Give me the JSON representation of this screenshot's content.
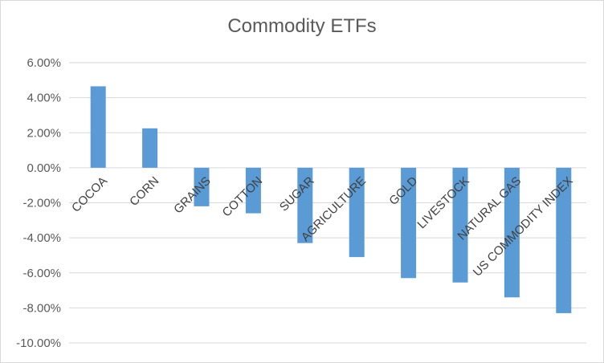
{
  "chart_data": {
    "type": "bar",
    "title": "Commodity ETFs",
    "xlabel": "",
    "ylabel": "",
    "categories": [
      "COCOA",
      "CORN",
      "GRAINS",
      "COTTON",
      "SUGAR",
      "AGRICULTURE",
      "GOLD",
      "LIVESTOCK",
      "NATURAL GAS",
      "US COMMODITY INDEX"
    ],
    "values": [
      4.65,
      2.25,
      -2.2,
      -2.6,
      -4.3,
      -5.1,
      -6.3,
      -6.55,
      -7.4,
      -8.3
    ],
    "ylim": [
      -10,
      6
    ],
    "yticks": [
      6,
      4,
      2,
      0,
      -2,
      -4,
      -6,
      -8,
      -10
    ],
    "ytick_labels": [
      "6.00%",
      "4.00%",
      "2.00%",
      "0.00%",
      "-2.00%",
      "-4.00%",
      "-6.00%",
      "-8.00%",
      "-10.00%"
    ],
    "bar_color": "#5b9bd5",
    "grid": true,
    "legend": "none"
  }
}
